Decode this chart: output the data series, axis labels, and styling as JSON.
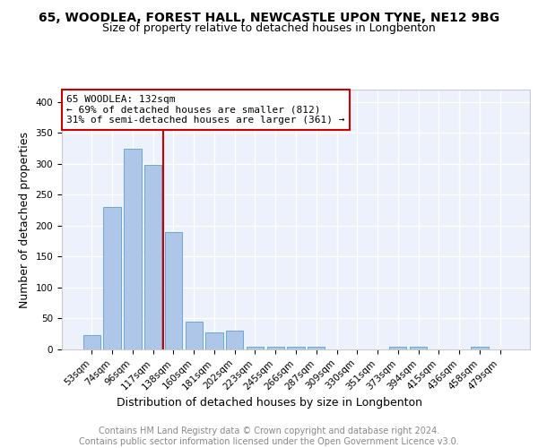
{
  "title": "65, WOODLEA, FOREST HALL, NEWCASTLE UPON TYNE, NE12 9BG",
  "subtitle": "Size of property relative to detached houses in Longbenton",
  "xlabel": "Distribution of detached houses by size in Longbenton",
  "ylabel": "Number of detached properties",
  "categories": [
    "53sqm",
    "74sqm",
    "96sqm",
    "117sqm",
    "138sqm",
    "160sqm",
    "181sqm",
    "202sqm",
    "223sqm",
    "245sqm",
    "266sqm",
    "287sqm",
    "309sqm",
    "330sqm",
    "351sqm",
    "373sqm",
    "394sqm",
    "415sqm",
    "436sqm",
    "458sqm",
    "479sqm"
  ],
  "values": [
    23,
    230,
    325,
    298,
    190,
    45,
    28,
    30,
    5,
    5,
    5,
    4,
    0,
    0,
    0,
    5,
    5,
    0,
    0,
    4,
    0
  ],
  "bar_color": "#aec6e8",
  "bar_edge_color": "#5a9fd4",
  "vline_index": 3.5,
  "vline_color": "#cc0000",
  "annotation_text": "65 WOODLEA: 132sqm\n← 69% of detached houses are smaller (812)\n31% of semi-detached houses are larger (361) →",
  "annotation_box_color": "#ffffff",
  "annotation_box_edge_color": "#cc0000",
  "ylim": [
    0,
    420
  ],
  "yticks": [
    0,
    50,
    100,
    150,
    200,
    250,
    300,
    350,
    400
  ],
  "footer1": "Contains HM Land Registry data © Crown copyright and database right 2024.",
  "footer2": "Contains public sector information licensed under the Open Government Licence v3.0.",
  "background_color": "#edf1fb",
  "grid_color": "#ffffff",
  "title_fontsize": 10,
  "subtitle_fontsize": 9,
  "axis_label_fontsize": 9,
  "tick_fontsize": 7.5,
  "footer_fontsize": 7,
  "annotation_fontsize": 8
}
